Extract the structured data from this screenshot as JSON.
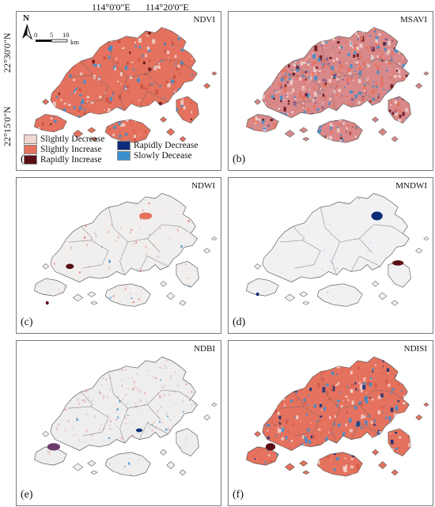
{
  "coordinates": {
    "lon1": "114°0'0\"E",
    "lon2": "114°20'0\"E",
    "lat1": "22°30'0\"N",
    "lat2": "22°15'0\"N"
  },
  "map_elements": {
    "north_letter": "N",
    "scale_ticks": [
      "0",
      "5",
      "10"
    ],
    "scale_unit": "km"
  },
  "legend": {
    "items": [
      {
        "label": "Slightly Decrease",
        "color": "#f2d6d0"
      },
      {
        "label": "Slightly Increase",
        "color": "#e4725e"
      },
      {
        "label": "Rapidly Increase",
        "color": "#5a0f16"
      },
      {
        "label": "Rapidly Decrease",
        "color": "#0c2c7a"
      },
      {
        "label": "Slowly Decease",
        "color": "#3a8fd0"
      }
    ]
  },
  "panels": [
    {
      "title": "NDVI",
      "label": "(a)"
    },
    {
      "title": "MSAVI",
      "label": "(b)"
    },
    {
      "title": "NDWI",
      "label": "(c)"
    },
    {
      "title": "MNDWI",
      "label": "(d)"
    },
    {
      "title": "NDBI",
      "label": "(e)"
    },
    {
      "title": "NDISI",
      "label": "(f)"
    }
  ]
}
